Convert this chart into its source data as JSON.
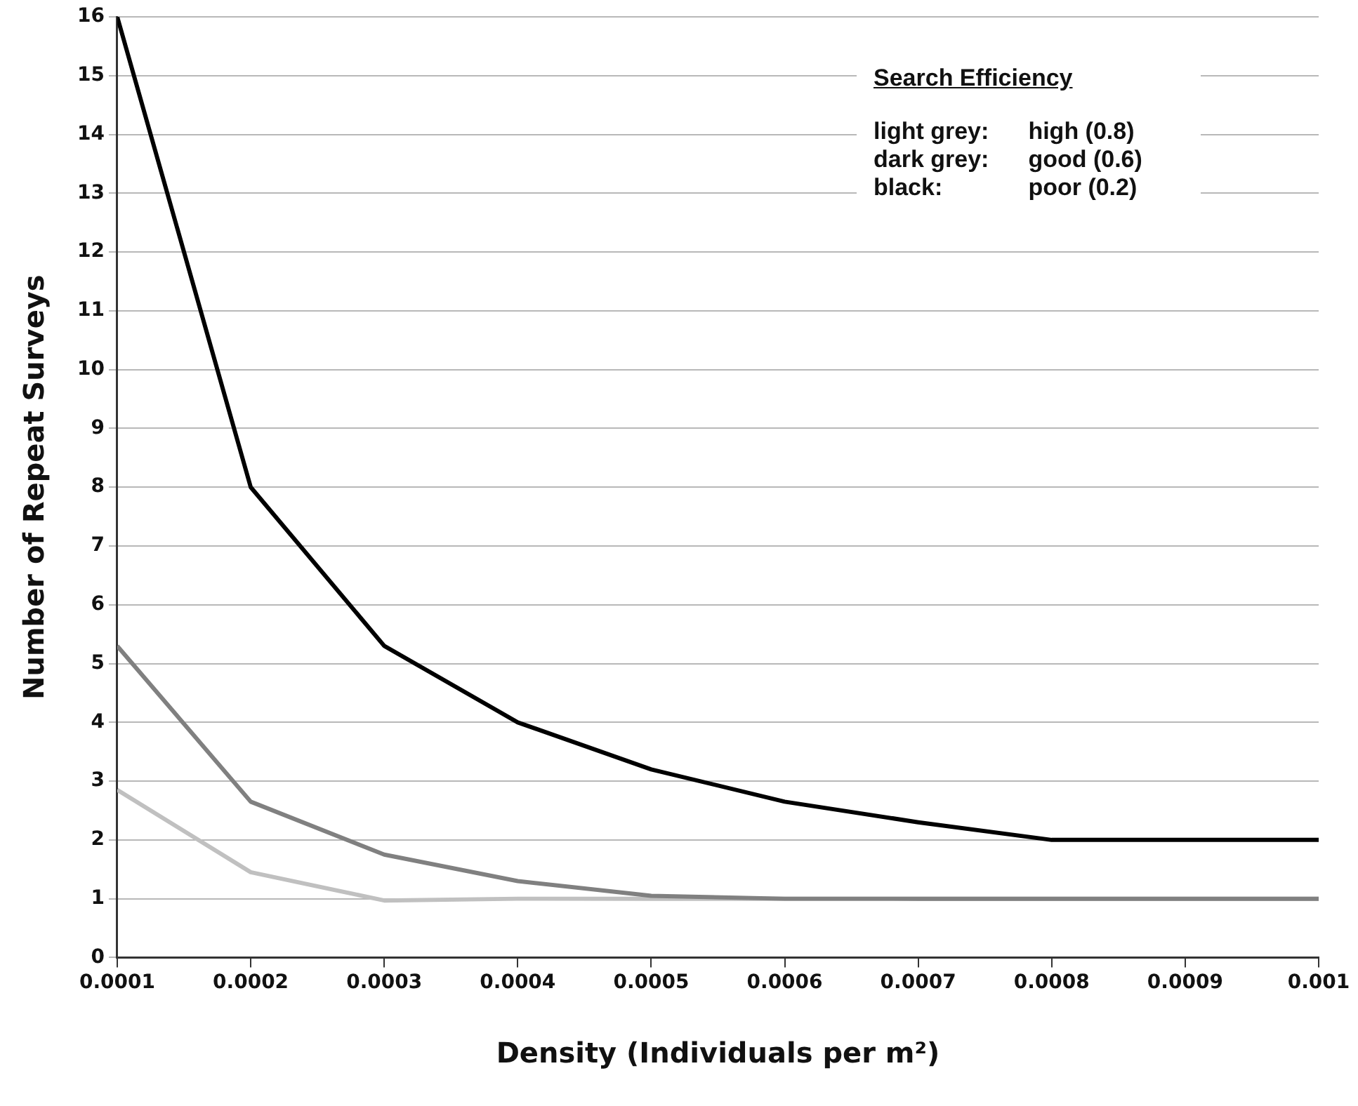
{
  "chart_data": {
    "type": "line",
    "xlabel": "Density (Individuals per m²)",
    "ylabel": "Number of Repeat Surveys",
    "x": [
      0.0001,
      0.0002,
      0.0003,
      0.0004,
      0.0005,
      0.0006,
      0.0007,
      0.0008,
      0.0009,
      0.001
    ],
    "series": [
      {
        "color": "#000000",
        "values": [
          16,
          8,
          5.3,
          4,
          3.2,
          2.65,
          2.3,
          2,
          2,
          2
        ]
      },
      {
        "color": "#808080",
        "values": [
          5.3,
          2.65,
          1.75,
          1.3,
          1.05,
          1,
          1,
          1,
          1,
          1
        ]
      },
      {
        "color": "#c0c0c0",
        "values": [
          2.85,
          1.45,
          0.97,
          1,
          1,
          1,
          1,
          1,
          1,
          1
        ]
      }
    ],
    "xlim": [
      0.0001,
      0.001
    ],
    "xticks": [
      0.0001,
      0.0002,
      0.0003,
      0.0004,
      0.0005,
      0.0006,
      0.0007,
      0.0008,
      0.0009,
      0.001
    ],
    "ylim": [
      0,
      16
    ],
    "yticks": [
      0,
      1,
      2,
      3,
      4,
      5,
      6,
      7,
      8,
      9,
      10,
      11,
      12,
      13,
      14,
      15,
      16
    ],
    "grid": "y",
    "legend": false,
    "marker": "none",
    "line_style": "solid",
    "annotations": [
      "Search Efficiency",
      "light grey:",
      "high (0.8)",
      "dark grey:",
      "good (0.6)",
      "black:",
      "poor (0.2)"
    ]
  }
}
